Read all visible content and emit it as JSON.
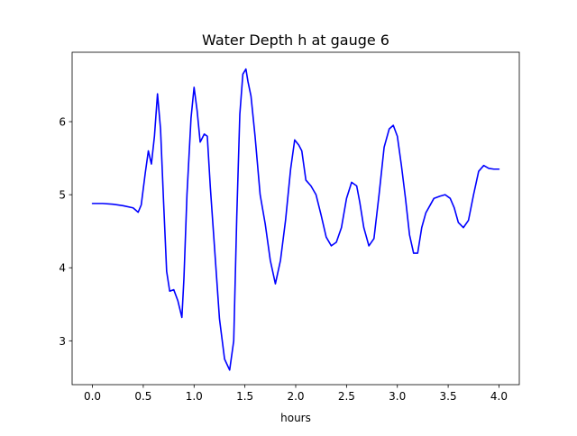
{
  "chart_data": {
    "type": "line",
    "title": "Water Depth h at gauge 6",
    "xlabel": "hours",
    "ylabel": "",
    "xlim": [
      -0.2,
      4.2
    ],
    "ylim": [
      2.4,
      6.95
    ],
    "grid": false,
    "legend": "none",
    "xticks": [
      0.0,
      0.5,
      1.0,
      1.5,
      2.0,
      2.5,
      3.0,
      3.5,
      4.0
    ],
    "xtick_labels": [
      "0.0",
      "0.5",
      "1.0",
      "1.5",
      "2.0",
      "2.5",
      "3.0",
      "3.5",
      "4.0"
    ],
    "yticks": [
      3,
      4,
      5,
      6
    ],
    "ytick_labels": [
      "3",
      "4",
      "5",
      "6"
    ],
    "series": [
      {
        "color": "#0000ff",
        "x": [
          0.0,
          0.1,
          0.2,
          0.3,
          0.4,
          0.45,
          0.48,
          0.52,
          0.55,
          0.58,
          0.61,
          0.64,
          0.67,
          0.7,
          0.73,
          0.76,
          0.8,
          0.84,
          0.88,
          0.9,
          0.93,
          0.97,
          1.0,
          1.03,
          1.06,
          1.1,
          1.13,
          1.16,
          1.2,
          1.25,
          1.3,
          1.35,
          1.39,
          1.42,
          1.45,
          1.48,
          1.51,
          1.53,
          1.56,
          1.6,
          1.65,
          1.7,
          1.75,
          1.8,
          1.85,
          1.9,
          1.95,
          1.99,
          2.03,
          2.06,
          2.1,
          2.15,
          2.2,
          2.25,
          2.3,
          2.35,
          2.4,
          2.45,
          2.5,
          2.55,
          2.6,
          2.63,
          2.67,
          2.72,
          2.77,
          2.82,
          2.87,
          2.92,
          2.96,
          3.0,
          3.04,
          3.08,
          3.12,
          3.16,
          3.2,
          3.24,
          3.28,
          3.32,
          3.36,
          3.42,
          3.47,
          3.52,
          3.56,
          3.6,
          3.65,
          3.7,
          3.75,
          3.8,
          3.85,
          3.9,
          3.95,
          3.98,
          4.0
        ],
        "y": [
          4.88,
          4.88,
          4.87,
          4.85,
          4.82,
          4.76,
          4.86,
          5.3,
          5.6,
          5.42,
          5.8,
          6.38,
          5.9,
          4.9,
          3.95,
          3.68,
          3.7,
          3.55,
          3.32,
          3.85,
          5.0,
          6.05,
          6.47,
          6.15,
          5.72,
          5.83,
          5.8,
          5.1,
          4.3,
          3.3,
          2.75,
          2.6,
          3.0,
          4.7,
          6.1,
          6.65,
          6.72,
          6.55,
          6.35,
          5.8,
          5.0,
          4.6,
          4.1,
          3.78,
          4.1,
          4.65,
          5.35,
          5.75,
          5.68,
          5.6,
          5.2,
          5.12,
          5.0,
          4.72,
          4.42,
          4.3,
          4.35,
          4.55,
          4.95,
          5.17,
          5.12,
          4.9,
          4.55,
          4.3,
          4.4,
          5.0,
          5.65,
          5.9,
          5.95,
          5.8,
          5.4,
          4.95,
          4.45,
          4.2,
          4.2,
          4.55,
          4.75,
          4.85,
          4.95,
          4.98,
          5.0,
          4.95,
          4.82,
          4.62,
          4.55,
          4.65,
          5.0,
          5.32,
          5.4,
          5.36,
          5.35,
          5.35,
          5.35
        ]
      }
    ]
  }
}
